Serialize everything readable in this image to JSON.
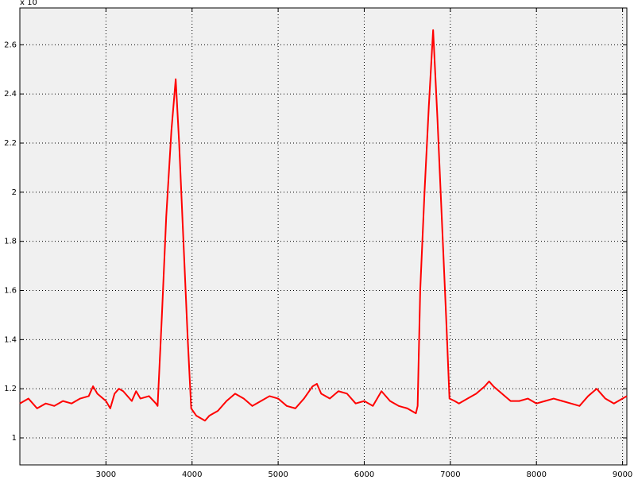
{
  "chart_data": {
    "type": "line",
    "annotations": [
      "x 10"
    ],
    "x": [
      2000,
      2100,
      2200,
      2300,
      2400,
      2500,
      2600,
      2700,
      2800,
      2850,
      2900,
      3000,
      3050,
      3100,
      3150,
      3200,
      3300,
      3350,
      3400,
      3500,
      3580,
      3600,
      3650,
      3700,
      3760,
      3810,
      3850,
      3900,
      3950,
      3990,
      4050,
      4100,
      4150,
      4200,
      4300,
      4400,
      4500,
      4600,
      4700,
      4800,
      4900,
      5000,
      5100,
      5200,
      5300,
      5400,
      5450,
      5500,
      5600,
      5700,
      5800,
      5900,
      6000,
      6100,
      6200,
      6300,
      6400,
      6500,
      6600,
      6620,
      6650,
      6700,
      6750,
      6800,
      6850,
      6900,
      6950,
      6990,
      7050,
      7100,
      7200,
      7300,
      7400,
      7450,
      7500,
      7600,
      7700,
      7800,
      7900,
      8000,
      8100,
      8200,
      8300,
      8400,
      8500,
      8600,
      8700,
      8800,
      8900,
      9000,
      9050
    ],
    "series": [
      {
        "color": "#ff0000",
        "values": [
          1.14,
          1.16,
          1.12,
          1.14,
          1.13,
          1.15,
          1.14,
          1.16,
          1.17,
          1.21,
          1.18,
          1.15,
          1.12,
          1.18,
          1.2,
          1.19,
          1.15,
          1.19,
          1.16,
          1.17,
          1.14,
          1.13,
          1.5,
          1.9,
          2.25,
          2.46,
          2.2,
          1.8,
          1.4,
          1.12,
          1.09,
          1.08,
          1.07,
          1.09,
          1.11,
          1.15,
          1.18,
          1.16,
          1.13,
          1.15,
          1.17,
          1.16,
          1.13,
          1.12,
          1.16,
          1.21,
          1.22,
          1.18,
          1.16,
          1.19,
          1.18,
          1.14,
          1.15,
          1.13,
          1.19,
          1.15,
          1.13,
          1.12,
          1.1,
          1.13,
          1.6,
          2.0,
          2.35,
          2.66,
          2.3,
          1.9,
          1.5,
          1.16,
          1.15,
          1.14,
          1.16,
          1.18,
          1.21,
          1.23,
          1.21,
          1.18,
          1.15,
          1.15,
          1.16,
          1.14,
          1.15,
          1.16,
          1.15,
          1.14,
          1.13,
          1.17,
          1.2,
          1.16,
          1.14,
          1.16,
          1.17
        ]
      }
    ],
    "xlim": [
      2000,
      9050
    ],
    "xticks": [
      3000,
      4000,
      5000,
      6000,
      7000,
      8000,
      9000
    ],
    "ylim": [
      0.89,
      2.75
    ],
    "yticks": [
      1,
      1.2,
      1.4,
      1.6,
      1.8,
      2,
      2.2,
      2.4,
      2.6
    ],
    "grid": true
  }
}
